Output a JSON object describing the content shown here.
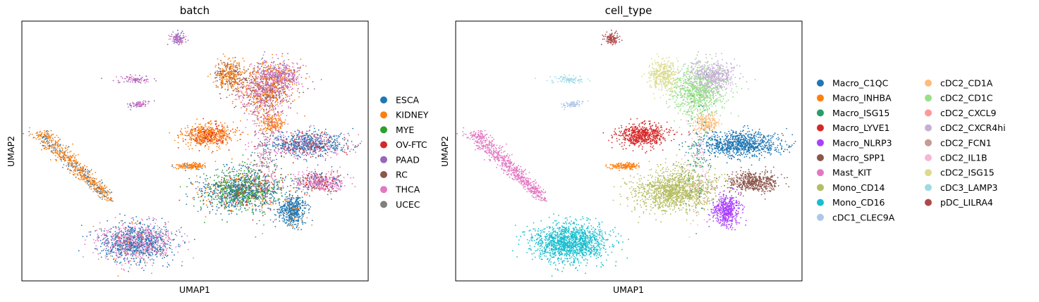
{
  "chart_data": [
    {
      "type": "scatter",
      "title": "batch",
      "xlabel": "UMAP1",
      "ylabel": "UMAP2",
      "grid": false,
      "legend_placement": "right",
      "series": [
        {
          "name": "ESCA",
          "color": "#1f77b4"
        },
        {
          "name": "KIDNEY",
          "color": "#ff7f0e"
        },
        {
          "name": "MYE",
          "color": "#2ca02c"
        },
        {
          "name": "OV-FTC",
          "color": "#d62728"
        },
        {
          "name": "PAAD",
          "color": "#9467bd"
        },
        {
          "name": "RC",
          "color": "#8c564b"
        },
        {
          "name": "THCA",
          "color": "#e377c2"
        },
        {
          "name": "UCEC",
          "color": "#7f7f7f"
        }
      ]
    },
    {
      "type": "scatter",
      "title": "cell_type",
      "xlabel": "UMAP1",
      "ylabel": "UMAP2",
      "grid": false,
      "legend_placement": "right",
      "series": [
        {
          "name": "Macro_C1QC",
          "color": "#1f77b4"
        },
        {
          "name": "Macro_INHBA",
          "color": "#ff7f0e"
        },
        {
          "name": "Macro_ISG15",
          "color": "#279e68"
        },
        {
          "name": "Macro_LYVE1",
          "color": "#d62728"
        },
        {
          "name": "Macro_NLRP3",
          "color": "#aa40fc"
        },
        {
          "name": "Macro_SPP1",
          "color": "#8c564b"
        },
        {
          "name": "Mast_KIT",
          "color": "#e377c2"
        },
        {
          "name": "Mono_CD14",
          "color": "#b5bd61"
        },
        {
          "name": "Mono_CD16",
          "color": "#17becf"
        },
        {
          "name": "cDC1_CLEC9A",
          "color": "#aec7e8"
        },
        {
          "name": "cDC2_CD1A",
          "color": "#ffbb78"
        },
        {
          "name": "cDC2_CD1C",
          "color": "#98df8a"
        },
        {
          "name": "cDC2_CXCL9",
          "color": "#ff9896"
        },
        {
          "name": "cDC2_CXCR4hi",
          "color": "#c5b0d5"
        },
        {
          "name": "cDC2_FCN1",
          "color": "#c49c94"
        },
        {
          "name": "cDC2_IL1B",
          "color": "#f7b6d2"
        },
        {
          "name": "cDC2_ISG15",
          "color": "#dbdb8d"
        },
        {
          "name": "cDC3_LAMP3",
          "color": "#9edae5"
        },
        {
          "name": "pDC_LILRA4",
          "color": "#ad494a"
        }
      ]
    }
  ]
}
